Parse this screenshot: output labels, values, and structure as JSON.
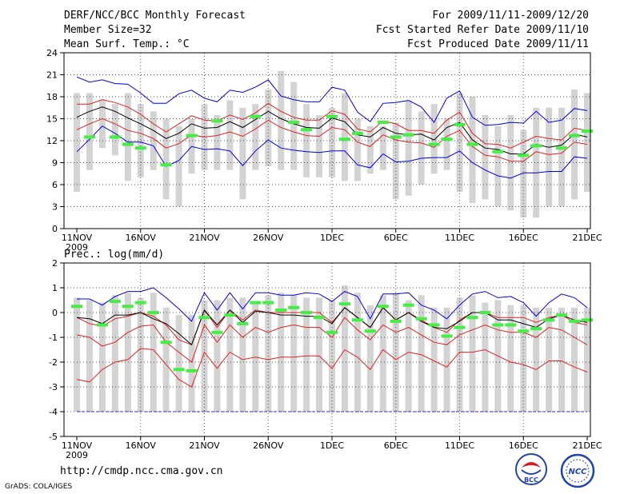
{
  "header": {
    "title": "DERF/NCC/BCC Monthly Forecast",
    "member_size": "Member Size=32",
    "variable": "Mean Surf. Temp.: °C",
    "period": "For 2009/11/11-2009/12/20",
    "fcst_started": "Fcst Started Refer Date 2009/11/10",
    "fcst_produced": "Fcst Produced Date 2009/11/11"
  },
  "footer": {
    "url": "http://cmdp.ncc.cma.gov.cn",
    "credit": "GrADS: COLA/IGES"
  },
  "logos": {
    "bcc": "BCC",
    "ncc": "NCC"
  },
  "colors": {
    "box": "#d3d3d3",
    "obs": "#44ee44",
    "ens_mean": "#000000",
    "inner": "#dd2222",
    "outer": "#0000dd",
    "grid": "#555555"
  },
  "chart_data": [
    {
      "type": "line",
      "title": "Mean Surf. Temp.: °C",
      "xlabel": "",
      "ylabel": "°C",
      "ylim": [
        0,
        24
      ],
      "yticks": [
        0,
        3,
        6,
        9,
        12,
        15,
        18,
        21,
        24
      ],
      "xlim": [
        0,
        40
      ],
      "xticks": [
        {
          "i": 0,
          "label": "11NOV"
        },
        {
          "i": 5,
          "label": "16NOV"
        },
        {
          "i": 10,
          "label": "21NOV"
        },
        {
          "i": 15,
          "label": "26NOV"
        },
        {
          "i": 20,
          "label": "1DEC"
        },
        {
          "i": 25,
          "label": "6DEC"
        },
        {
          "i": 30,
          "label": "11DEC"
        },
        {
          "i": 35,
          "label": "16DEC"
        },
        {
          "i": 40,
          "label": "21DEC"
        }
      ],
      "year_label": "2009",
      "box_low": [
        5,
        8,
        11,
        10,
        6.5,
        7,
        8,
        4,
        3,
        7.5,
        8,
        8,
        8,
        4,
        8,
        8.5,
        8,
        8,
        7,
        7,
        7,
        6.5,
        6.5,
        7.5,
        8,
        4,
        4.5,
        6,
        7.5,
        8,
        5,
        3.5,
        4,
        3,
        2.5,
        1.5,
        1.5,
        3,
        3,
        4,
        5
      ],
      "box_high": [
        18.5,
        18.5,
        17.5,
        17,
        18.5,
        17,
        16,
        15,
        14,
        15,
        17,
        15.5,
        17.5,
        16.5,
        17,
        19,
        21.5,
        20,
        17,
        15.5,
        16.5,
        18.5,
        15,
        14,
        14,
        14.5,
        17.5,
        16,
        17,
        15,
        18.5,
        18,
        15.5,
        14,
        15.5,
        13.5,
        16.5,
        16.5,
        16.5,
        19,
        18.5
      ],
      "obs": [
        null,
        12.5,
        null,
        12.5,
        11.5,
        11,
        null,
        8.7,
        null,
        12.7,
        null,
        14.7,
        null,
        null,
        15.3,
        null,
        null,
        14.5,
        13.5,
        null,
        15.3,
        12.2,
        13,
        null,
        14.5,
        12.5,
        12.8,
        null,
        11.5,
        12.2,
        14.2,
        11.5,
        null,
        10.5,
        null,
        10,
        11.3,
        null,
        11,
        12.7,
        13.3
      ],
      "series": [
        {
          "name": "max",
          "role": "outer",
          "values": [
            20.7,
            20,
            20.3,
            19.8,
            19.7,
            18.5,
            17.1,
            17.1,
            18.4,
            18.9,
            17.8,
            17.3,
            18.9,
            18.6,
            19.3,
            20.3,
            18.1,
            17.6,
            17.3,
            17.3,
            19.3,
            18.9,
            15.9,
            14.6,
            17.1,
            17.2,
            17.5,
            16.6,
            14.5,
            17.8,
            18.8,
            15.2,
            14.1,
            14.2,
            14.5,
            14.4,
            16,
            14.5,
            14.8,
            16.4,
            16.1
          ]
        },
        {
          "name": "p75",
          "role": "inner",
          "values": [
            17,
            17,
            17.6,
            17.2,
            16.6,
            15.6,
            14.3,
            13.2,
            14.3,
            15.4,
            14.8,
            14.7,
            15.5,
            14.9,
            15.8,
            17.1,
            16,
            15.2,
            14.8,
            14.8,
            16.1,
            15.6,
            13.6,
            13.2,
            14.7,
            14.3,
            13.4,
            13.4,
            13,
            14.8,
            15.9,
            13,
            11.6,
            11.5,
            11,
            11.8,
            12.6,
            12.3,
            12.1,
            13.7,
            13.4
          ]
        },
        {
          "name": "mean",
          "role": "mean",
          "values": [
            15.2,
            16,
            16.6,
            16,
            15.1,
            14.3,
            13.4,
            12.3,
            13,
            14.3,
            13.7,
            13.8,
            14.6,
            13.8,
            14.9,
            16,
            15,
            14.3,
            13.8,
            13.7,
            15.1,
            14.6,
            12.8,
            12.5,
            13.8,
            13,
            12.8,
            12.9,
            12.1,
            13.8,
            14.5,
            12.1,
            11,
            10.8,
            10.2,
            10.2,
            11.5,
            11.1,
            11.4,
            12.9,
            12.5
          ]
        },
        {
          "name": "p25",
          "role": "inner",
          "values": [
            13.5,
            14.3,
            15,
            14.3,
            13.4,
            13,
            12.3,
            11,
            11.6,
            12.8,
            12.5,
            12.7,
            13.2,
            12.6,
            13.6,
            14.8,
            13.8,
            13.2,
            12.7,
            12.6,
            13.8,
            13.5,
            11.8,
            11.2,
            12.8,
            12.1,
            11.8,
            11.7,
            11.1,
            12.6,
            13.4,
            11.2,
            10,
            9.8,
            9.2,
            9.2,
            10.5,
            10.1,
            10.3,
            11.8,
            11.5
          ]
        },
        {
          "name": "min",
          "role": "outer",
          "values": [
            10.5,
            12.2,
            14,
            13,
            11.8,
            11.8,
            11.3,
            8.5,
            9.3,
            11.2,
            10.8,
            10.9,
            10.6,
            8.6,
            10.6,
            12.1,
            11,
            10.7,
            10.5,
            10.4,
            10.6,
            10.6,
            8.7,
            8.3,
            10.2,
            9.1,
            9.2,
            9.6,
            9.7,
            9.7,
            10.6,
            9,
            8,
            7.2,
            6.9,
            7.6,
            7.6,
            7.8,
            7.8,
            9.8,
            9.6
          ]
        }
      ]
    },
    {
      "type": "line",
      "title": "Prec.: log(mm/d)",
      "xlabel": "",
      "ylabel": "log(mm/d)",
      "ylim": [
        -5,
        2
      ],
      "yticks": [
        -5,
        -4,
        -3,
        -2,
        -1,
        0,
        1,
        2
      ],
      "xlim": [
        0,
        40
      ],
      "xticks": [
        {
          "i": 0,
          "label": "11NOV"
        },
        {
          "i": 5,
          "label": "16NOV"
        },
        {
          "i": 10,
          "label": "21NOV"
        },
        {
          "i": 15,
          "label": "26NOV"
        },
        {
          "i": 20,
          "label": "1DEC"
        },
        {
          "i": 25,
          "label": "6DEC"
        },
        {
          "i": 30,
          "label": "11DEC"
        },
        {
          "i": 35,
          "label": "16DEC"
        },
        {
          "i": 40,
          "label": "21DEC"
        }
      ],
      "year_label": "2009",
      "baseline": -4,
      "box_low": [
        -4,
        -4,
        -4,
        -4,
        -4,
        -4,
        -4,
        -4,
        -4,
        -4,
        -4,
        -4,
        -4,
        -4,
        -4,
        -4,
        -4,
        -4,
        -4,
        -4,
        -4,
        -4,
        -4,
        -4,
        -4,
        -4,
        -4,
        -4,
        -4,
        -4,
        -4,
        -4,
        -4,
        -4,
        -4,
        -4,
        -4,
        -4,
        -4,
        -4,
        -4
      ],
      "box_high": [
        0.6,
        0.5,
        0.4,
        0.7,
        0.8,
        0.6,
        0.8,
        0.2,
        -0.1,
        -0.1,
        0.5,
        0.5,
        0.6,
        0.6,
        0.4,
        0.7,
        0.8,
        0.7,
        0.6,
        0.6,
        0.5,
        1.1,
        0.8,
        0.3,
        0.7,
        0.8,
        0.5,
        0.7,
        0.2,
        0.2,
        0.6,
        0.7,
        0.4,
        0.5,
        0.3,
        0.3,
        0.2,
        0.2,
        0.2,
        0.2,
        0.2
      ],
      "obs": [
        0.25,
        null,
        -0.5,
        0.45,
        0.25,
        0.4,
        0,
        -1.2,
        -2.3,
        -2.35,
        -0.2,
        -0.8,
        -0.1,
        -0.45,
        0.4,
        0.4,
        0.1,
        0.2,
        0,
        -0.2,
        -0.8,
        0.35,
        -0.3,
        -0.75,
        0.25,
        -0.35,
        0.3,
        -0.25,
        -0.5,
        -0.95,
        -0.6,
        -0.2,
        0,
        -0.5,
        -0.5,
        -0.75,
        -0.65,
        -0.3,
        -0.1,
        -0.35,
        -0.3
      ],
      "series": [
        {
          "name": "max",
          "role": "outer",
          "values": [
            0.55,
            0.55,
            0.3,
            0.65,
            0.85,
            0.85,
            1,
            0.6,
            0.15,
            -0.35,
            0.8,
            0.1,
            0.8,
            0.15,
            0.8,
            0.8,
            0.7,
            0.7,
            0.8,
            0.75,
            0.45,
            0.85,
            0.65,
            -0.25,
            0.75,
            0.75,
            0.8,
            0.3,
            0.1,
            -0.25,
            0.3,
            0.75,
            0.85,
            0.6,
            0.65,
            0.4,
            -0.15,
            0.4,
            0.75,
            0.6,
            0.2
          ]
        },
        {
          "name": "p75",
          "role": "inner",
          "values": [
            -0.2,
            -0.45,
            -0.55,
            -0.25,
            -0.15,
            0,
            -0.15,
            -0.5,
            -1.1,
            -1.3,
            0.1,
            -0.6,
            0.1,
            -0.3,
            0.1,
            0,
            0,
            0,
            0,
            0,
            -0.4,
            0.2,
            -0.2,
            -0.6,
            0.2,
            -0.3,
            0,
            -0.3,
            -0.6,
            -0.8,
            -0.3,
            0,
            0,
            -0.2,
            -0.2,
            -0.2,
            -0.4,
            -0.2,
            -0.1,
            -0.4,
            -0.5
          ]
        },
        {
          "name": "p50",
          "role": "inner",
          "values": [
            -0.9,
            -1,
            -1.35,
            -1.2,
            -0.8,
            -0.55,
            -0.5,
            -1.2,
            -1.6,
            -2,
            -0.5,
            -1.2,
            -0.5,
            -1,
            -0.6,
            -0.8,
            -0.6,
            -0.5,
            -0.6,
            -0.6,
            -1,
            -0.2,
            -0.7,
            -1.1,
            -0.5,
            -0.8,
            -0.6,
            -0.9,
            -1.2,
            -1.3,
            -0.9,
            -0.7,
            -0.5,
            -0.7,
            -0.8,
            -0.8,
            -1,
            -0.6,
            -0.7,
            -1,
            -1.3
          ]
        },
        {
          "name": "p25",
          "role": "inner",
          "values": [
            -2.7,
            -2.8,
            -2.3,
            -2,
            -1.9,
            -1.45,
            -1.5,
            -2.1,
            -2.7,
            -3,
            -1.6,
            -2.25,
            -1.6,
            -1.9,
            -1.8,
            -1.9,
            -1.8,
            -1.8,
            -1.75,
            -1.75,
            -2.25,
            -1.5,
            -1.8,
            -2.3,
            -1.5,
            -1.9,
            -1.6,
            -1.7,
            -1.95,
            -2.2,
            -1.6,
            -1.6,
            -1.5,
            -1.75,
            -2,
            -2.1,
            -2.3,
            -1.95,
            -1.95,
            -2.2,
            -2.4
          ]
        },
        {
          "name": "mean",
          "role": "mean",
          "values": [
            -0.2,
            -0.25,
            -0.45,
            -0.1,
            -0.1,
            0,
            -0.25,
            -0.45,
            -0.85,
            -1.3,
            0.1,
            -0.5,
            0.1,
            -0.4,
            0.05,
            0,
            -0.1,
            -0.1,
            -0.15,
            -0.15,
            -0.45,
            0.2,
            -0.2,
            -0.6,
            0.2,
            -0.3,
            0,
            -0.35,
            -0.6,
            -0.65,
            -0.35,
            0,
            0,
            -0.3,
            -0.3,
            -0.45,
            -0.6,
            -0.25,
            -0.1,
            -0.3,
            -0.4
          ]
        }
      ]
    }
  ]
}
